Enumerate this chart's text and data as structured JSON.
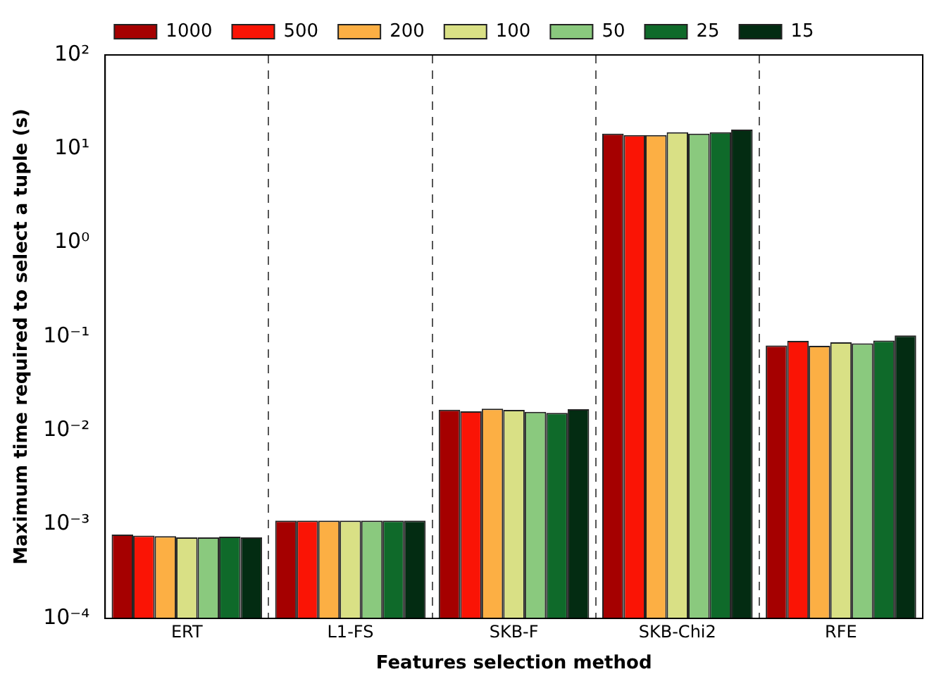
{
  "chart_data": {
    "type": "bar",
    "xlabel": "Features selection method",
    "ylabel": "Maximum time required to select a tuple (s)",
    "categories": [
      "ERT",
      "L1-FS",
      "SKB-F",
      "SKB-Chi2",
      "RFE"
    ],
    "series": [
      {
        "name": "1000",
        "color": "#a50000",
        "values": [
          0.00078,
          0.0011,
          0.0167,
          14.5,
          0.0805
        ]
      },
      {
        "name": "500",
        "color": "#fa1405",
        "values": [
          0.00076,
          0.0011,
          0.016,
          14,
          0.09
        ]
      },
      {
        "name": "200",
        "color": "#fcaf44",
        "values": [
          0.00075,
          0.0011,
          0.0171,
          14,
          0.08
        ]
      },
      {
        "name": "100",
        "color": "#d9e085",
        "values": [
          0.00073,
          0.0011,
          0.0166,
          15,
          0.087
        ]
      },
      {
        "name": "50",
        "color": "#8ac97e",
        "values": [
          0.00073,
          0.0011,
          0.0158,
          14.5,
          0.085
        ]
      },
      {
        "name": "25",
        "color": "#0f6a2a",
        "values": [
          0.00074,
          0.0011,
          0.0154,
          15,
          0.091
        ]
      },
      {
        "name": "15",
        "color": "#032c12",
        "values": [
          0.00073,
          0.0011,
          0.0169,
          16,
          0.103
        ]
      }
    ],
    "log": "y",
    "ylim": [
      0.0001,
      100
    ],
    "yticks": [
      {
        "value": 0.0001,
        "label": "10⁻⁴"
      },
      {
        "value": 0.001,
        "label": "10⁻³"
      },
      {
        "value": 0.01,
        "label": "10⁻²"
      },
      {
        "value": 0.1,
        "label": "10⁻¹"
      },
      {
        "value": 1,
        "label": "10⁰"
      },
      {
        "value": 10,
        "label": "10¹"
      },
      {
        "value": 100,
        "label": "10²"
      }
    ],
    "grid": "x",
    "line_style": "dashed",
    "legend": "top"
  }
}
